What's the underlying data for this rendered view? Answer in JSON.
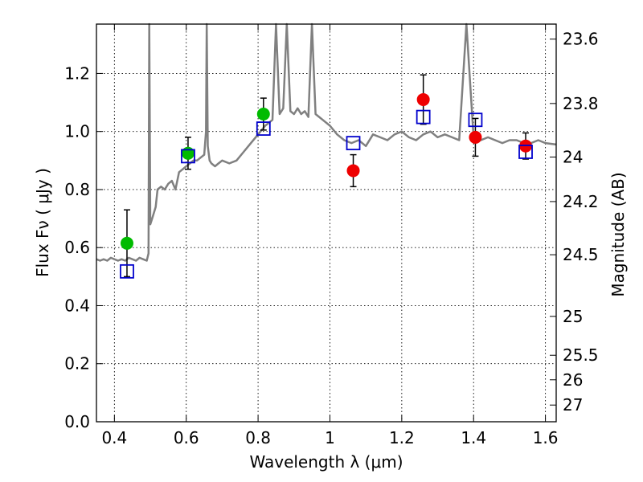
{
  "chart_data": {
    "type": "scatter",
    "xlabel": "Wavelength  λ (μm)",
    "ylabel": "Flux  Fν  ( μJy )",
    "y2label": "Magnitude (AB)",
    "xlim": [
      0.35,
      1.63
    ],
    "ylim": [
      0.0,
      1.37
    ],
    "grid": true,
    "x_ticks": [
      0.4,
      0.6,
      0.8,
      1.0,
      1.2,
      1.4,
      1.6
    ],
    "x_tick_labels": [
      "0.4",
      "0.6",
      "0.8",
      "1",
      "1.2",
      "1.4",
      "1.6"
    ],
    "y_ticks": [
      0.0,
      0.2,
      0.4,
      0.6,
      0.8,
      1.0,
      1.2
    ],
    "y_tick_labels": [
      "0.0",
      "0.2",
      "0.4",
      "0.6",
      "0.8",
      "1.0",
      "1.2"
    ],
    "mag_ticks": [
      23.6,
      23.8,
      24,
      24.2,
      24.5,
      25,
      25.5,
      26,
      27
    ],
    "mag_tick_labels": [
      "23.6",
      "23.8",
      "24",
      "24.2",
      "24.5",
      "25",
      "25.5",
      "26",
      "27"
    ],
    "series": [
      {
        "kind": "model-spectrum",
        "color": "#808080",
        "x": [
          0.35,
          0.36,
          0.37,
          0.38,
          0.39,
          0.4,
          0.41,
          0.42,
          0.43,
          0.44,
          0.45,
          0.46,
          0.47,
          0.48,
          0.49,
          0.495,
          0.497,
          0.5,
          0.505,
          0.51,
          0.515,
          0.52,
          0.53,
          0.54,
          0.55,
          0.56,
          0.57,
          0.58,
          0.59,
          0.6,
          0.61,
          0.62,
          0.63,
          0.64,
          0.65,
          0.655,
          0.657,
          0.66,
          0.665,
          0.67,
          0.68,
          0.69,
          0.7,
          0.72,
          0.74,
          0.76,
          0.78,
          0.8,
          0.82,
          0.84,
          0.85,
          0.86,
          0.87,
          0.88,
          0.89,
          0.9,
          0.91,
          0.92,
          0.93,
          0.94,
          0.95,
          0.96,
          0.97,
          0.98,
          1.0,
          1.02,
          1.04,
          1.06,
          1.08,
          1.1,
          1.12,
          1.14,
          1.16,
          1.18,
          1.2,
          1.22,
          1.24,
          1.26,
          1.28,
          1.3,
          1.32,
          1.34,
          1.36,
          1.38,
          1.4,
          1.42,
          1.44,
          1.46,
          1.48,
          1.5,
          1.52,
          1.54,
          1.56,
          1.58,
          1.6,
          1.63
        ],
        "y": [
          0.56,
          0.555,
          0.56,
          0.555,
          0.565,
          0.56,
          0.555,
          0.56,
          0.555,
          0.565,
          0.56,
          0.555,
          0.565,
          0.56,
          0.555,
          0.58,
          1.37,
          0.68,
          0.7,
          0.72,
          0.74,
          0.8,
          0.81,
          0.8,
          0.82,
          0.83,
          0.8,
          0.86,
          0.87,
          0.88,
          0.89,
          0.9,
          0.9,
          0.91,
          0.92,
          1.0,
          1.37,
          0.95,
          0.9,
          0.89,
          0.88,
          0.89,
          0.9,
          0.89,
          0.9,
          0.93,
          0.96,
          0.99,
          1.02,
          1.04,
          1.37,
          1.06,
          1.08,
          1.37,
          1.07,
          1.06,
          1.08,
          1.06,
          1.07,
          1.05,
          1.37,
          1.06,
          1.05,
          1.04,
          1.02,
          0.99,
          0.97,
          0.96,
          0.97,
          0.95,
          0.99,
          0.98,
          0.97,
          0.99,
          1.0,
          0.98,
          0.97,
          0.99,
          1.0,
          0.98,
          0.99,
          0.98,
          0.97,
          1.37,
          0.98,
          0.97,
          0.98,
          0.97,
          0.96,
          0.97,
          0.97,
          0.96,
          0.96,
          0.97,
          0.96,
          0.955
        ]
      },
      {
        "kind": "observed-green",
        "color": "#00bb00",
        "x": [
          0.435,
          0.605,
          0.815
        ],
        "y": [
          0.615,
          0.925,
          1.06
        ],
        "yerr": [
          0.115,
          0.055,
          0.055
        ]
      },
      {
        "kind": "observed-red",
        "color": "#ee0000",
        "x": [
          1.065,
          1.26,
          1.405,
          1.545
        ],
        "y": [
          0.865,
          1.11,
          0.98,
          0.95
        ],
        "yerr": [
          0.055,
          0.085,
          0.065,
          0.045
        ]
      },
      {
        "kind": "model-photometry",
        "color": "#0000cc",
        "x": [
          0.435,
          0.605,
          0.815,
          1.065,
          1.26,
          1.405,
          1.545
        ],
        "y": [
          0.518,
          0.915,
          1.01,
          0.96,
          1.05,
          1.04,
          0.93
        ]
      }
    ]
  }
}
